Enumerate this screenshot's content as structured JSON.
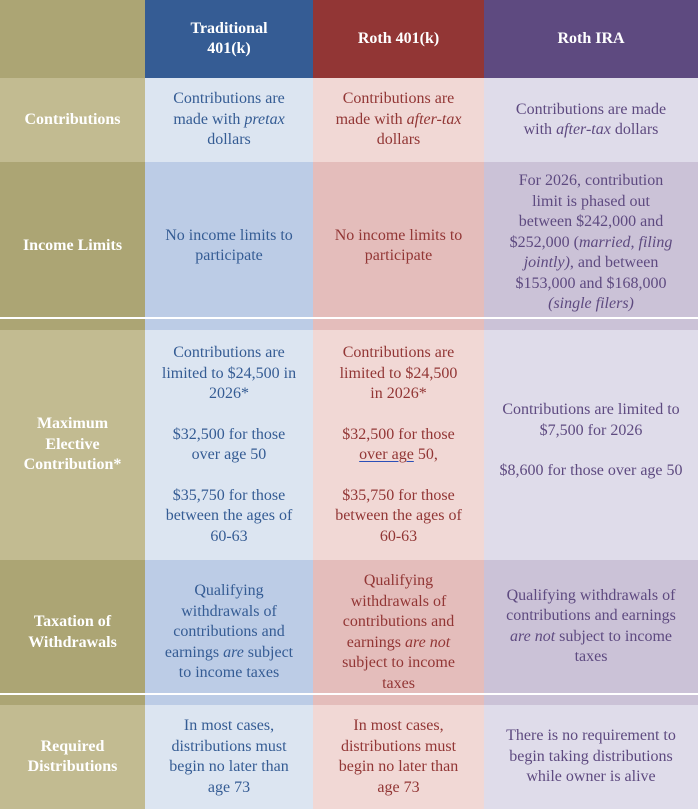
{
  "header": {
    "corner": "",
    "columns": [
      {
        "label": "Traditional 401(k)",
        "line1": "Traditional",
        "line2": "401(k)",
        "color": "#355c94"
      },
      {
        "label": "Roth 401(k)",
        "color": "#923635"
      },
      {
        "label": "Roth IRA",
        "color": "#5e4a80"
      }
    ]
  },
  "rows": {
    "contributions": {
      "label": "Contributions",
      "traditional": {
        "pre": "Contributions are made with ",
        "em": "pretax",
        "post": " dollars"
      },
      "roth401k": {
        "pre": "Contributions are made with ",
        "em": "after-tax",
        "post": " dollars"
      },
      "rothira": {
        "pre": "Contributions are made with ",
        "em": "after-tax",
        "post": " dollars"
      }
    },
    "income_limits": {
      "label": "Income Limits",
      "traditional": "No income limits to participate",
      "roth401k": "No income limits to participate",
      "rothira": {
        "a": "For 2026, contribution limit is phased out between $242,000 and $252,000 (",
        "em1": "married, filing jointly)",
        "b": ", and between $153,000 and $168,000 ",
        "em2": "(single filers)"
      }
    },
    "max_contribution": {
      "label_line1": "Maximum",
      "label_line2": "Elective",
      "label_line3": "Contribution*",
      "traditional": {
        "p1": "Contributions are limited to $24,500 in 2026*",
        "p2": "$32,500 for those over age 50",
        "p3": "$35,750 for those between the ages of 60-63"
      },
      "roth401k": {
        "p1": "Contributions are limited to $24,500 in 2026*",
        "p2_pre": "$32,500 for those ",
        "p2_underlined": "over age",
        "p2_post": " 50,",
        "p3": "$35,750 for those between the ages of 60-63"
      },
      "rothira": {
        "p1": "Contributions are limited to $7,500 for 2026",
        "p2": "$8,600 for those over age 50"
      }
    },
    "taxation": {
      "label_line1": "Taxation of",
      "label_line2": "Withdrawals",
      "traditional": {
        "pre": "Qualifying withdrawals of contributions and earnings ",
        "em": "are",
        "post": " subject to income taxes"
      },
      "roth401k": {
        "pre": "Qualifying withdrawals of contributions and earnings ",
        "em": "are not",
        "post": " subject to income taxes"
      },
      "rothira": {
        "pre": "Qualifying withdrawals of contributions and earnings ",
        "em": "are not",
        "post": " subject to income taxes"
      }
    },
    "required_distributions": {
      "label_line1": "Required",
      "label_line2": "Distributions",
      "traditional": "In most cases, distributions must begin no later than age 73",
      "roth401k": "In most cases, distributions must begin no later than age 73",
      "rothira": "There is no requirement to begin taking distributions while owner is alive"
    }
  },
  "colors": {
    "label_light": "#c2bb91",
    "label_dark": "#aca574",
    "traditional_light": "#dce5f1",
    "traditional_dark": "#bccce6",
    "roth401k_light": "#f1d8d5",
    "roth401k_dark": "#e4bdbb",
    "rothira_light": "#dfdcea",
    "rothira_dark": "#cbc2d7"
  }
}
